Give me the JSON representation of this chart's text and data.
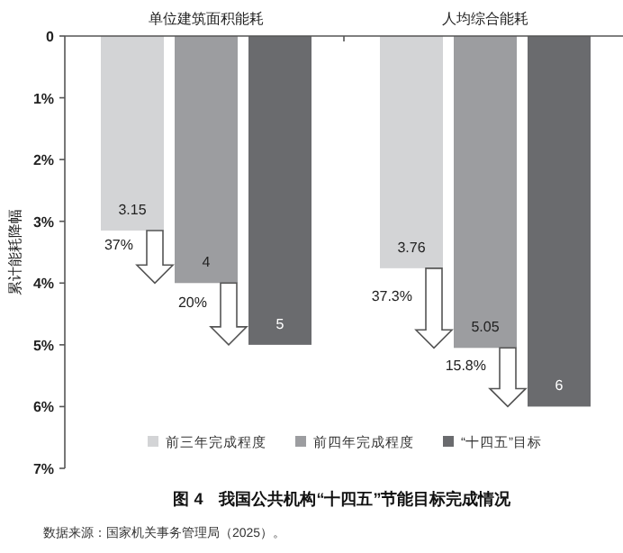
{
  "chart_data": {
    "type": "bar",
    "title": "图 4　我国公共机构“十四五”节能目标完成情况",
    "ylabel": "累计能耗降幅",
    "categories": [
      "单位建筑面积能耗",
      "人均综合能耗"
    ],
    "series": [
      {
        "name": "前三年完成程度",
        "color": "#d3d4d6",
        "values": [
          3.15,
          3.76
        ]
      },
      {
        "name": "前四年完成程度",
        "color": "#9c9da0",
        "values": [
          4,
          5.05
        ]
      },
      {
        "name": "“十四五”目标",
        "color": "#6a6b6e",
        "values": [
          5,
          6
        ]
      }
    ],
    "ylim": [
      7,
      0
    ],
    "yticks": [
      0,
      {
        "value": 1,
        "label": "1%"
      },
      {
        "value": 2,
        "label": "2%"
      },
      {
        "value": 3,
        "label": "3%"
      },
      {
        "value": 4,
        "label": "4%"
      },
      {
        "value": 5,
        "label": "5%"
      },
      {
        "value": 6,
        "label": "6%"
      },
      {
        "value": 7,
        "label": "7%"
      }
    ],
    "data_labels": true,
    "legend": "bottom",
    "annotations": [
      "37%",
      "20%",
      "37.3%",
      "15.8%",
      "数据来源：国家机关事务管理局（2025）。"
    ]
  }
}
